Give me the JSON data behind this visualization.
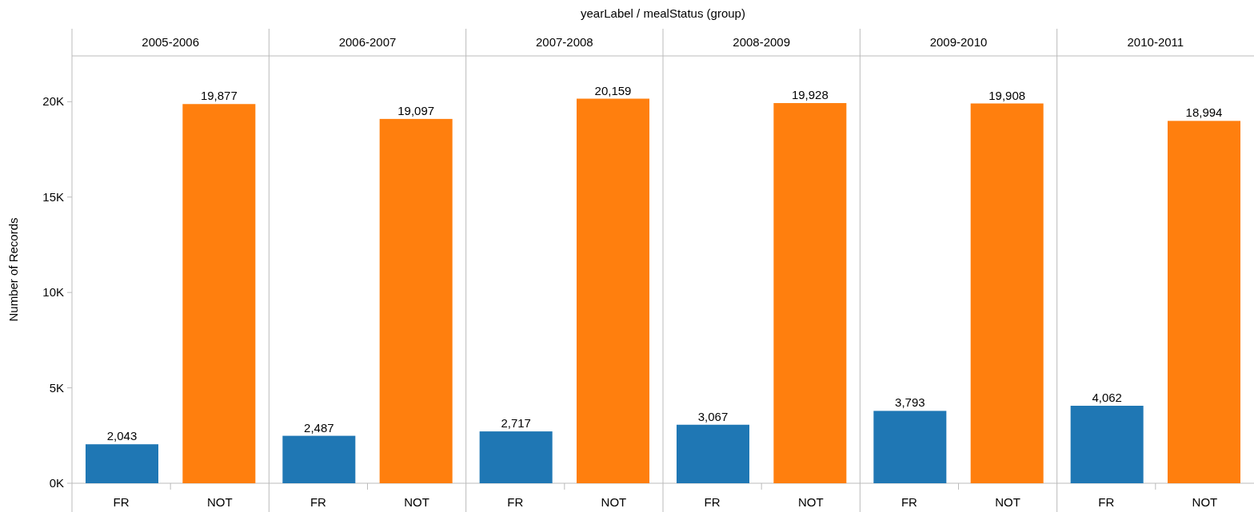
{
  "chart_data": [
    {
      "type": "bar",
      "title": "2005-2006",
      "annotations": [
        "yearLabel  /  mealStatus (group)"
      ],
      "ylabel": "Number of Records",
      "categories": [
        "FR",
        "NOT"
      ],
      "values": [
        2043,
        19877
      ],
      "value_labels": [
        "2,043",
        "19,877"
      ],
      "colors": [
        "#1f77b4",
        "#ff7f0e"
      ],
      "ylim": [
        0,
        22400
      ],
      "yticks": [
        {
          "value": 0,
          "label": "0K"
        },
        {
          "value": 5000,
          "label": "5K"
        },
        {
          "value": 10000,
          "label": "10K"
        },
        {
          "value": 15000,
          "label": "15K"
        },
        {
          "value": 20000,
          "label": "20K"
        }
      ]
    },
    {
      "type": "bar",
      "title": "2006-2007",
      "categories": [
        "FR",
        "NOT"
      ],
      "values": [
        2487,
        19097
      ],
      "value_labels": [
        "2,487",
        "19,097"
      ],
      "colors": [
        "#1f77b4",
        "#ff7f0e"
      ],
      "ylim": [
        0,
        22400
      ],
      "tick_labels": "x"
    },
    {
      "type": "bar",
      "title": "2007-2008",
      "categories": [
        "FR",
        "NOT"
      ],
      "values": [
        2717,
        20159
      ],
      "value_labels": [
        "2,717",
        "20,159"
      ],
      "colors": [
        "#1f77b4",
        "#ff7f0e"
      ],
      "ylim": [
        0,
        22400
      ],
      "tick_labels": "x"
    },
    {
      "type": "bar",
      "title": "2008-2009",
      "categories": [
        "FR",
        "NOT"
      ],
      "values": [
        3067,
        19928
      ],
      "value_labels": [
        "3,067",
        "19,928"
      ],
      "colors": [
        "#1f77b4",
        "#ff7f0e"
      ],
      "ylim": [
        0,
        22400
      ],
      "tick_labels": "x"
    },
    {
      "type": "bar",
      "title": "2009-2010",
      "categories": [
        "FR",
        "NOT"
      ],
      "values": [
        3793,
        19908
      ],
      "value_labels": [
        "3,793",
        "19,908"
      ],
      "colors": [
        "#1f77b4",
        "#ff7f0e"
      ],
      "ylim": [
        0,
        22400
      ],
      "tick_labels": "x"
    },
    {
      "type": "bar",
      "title": "2010-2011",
      "categories": [
        "FR",
        "NOT"
      ],
      "values": [
        4062,
        18994
      ],
      "value_labels": [
        "4,062",
        "18,994"
      ],
      "colors": [
        "#1f77b4",
        "#ff7f0e"
      ],
      "ylim": [
        0,
        22400
      ],
      "tick_labels": "x"
    }
  ]
}
